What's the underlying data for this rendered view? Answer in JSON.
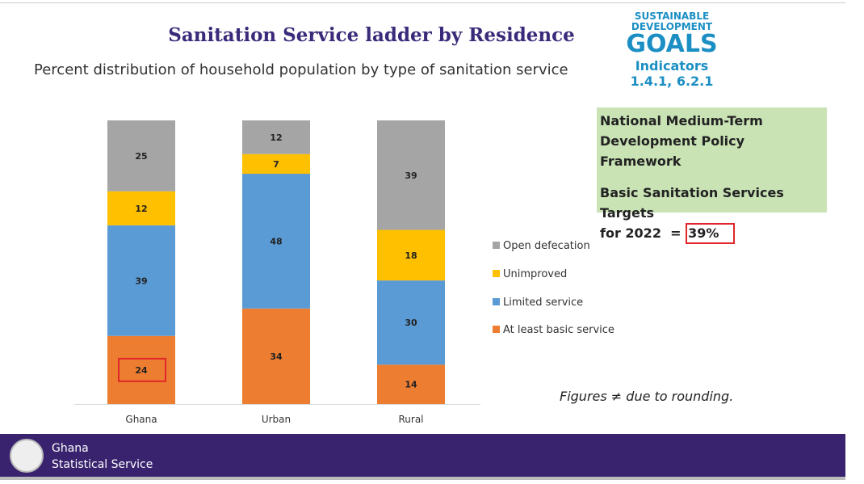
{
  "header": {
    "title": "Sanitation Service ladder by Residence",
    "subtitle": "Percent distribution of household population by type of sanitation service"
  },
  "sdg": {
    "line1": "SUSTAINABLE",
    "line2": "DEVELOPMENT",
    "line3": "GOALS",
    "indicators": "Indicators",
    "codes": "1.4.1, 6.2.1"
  },
  "policy_box": {
    "line1": "National Medium-Term",
    "line2": "Development Policy Framework",
    "line3": "Basic Sanitation Services Targets",
    "line4_prefix": "for 2022  = ",
    "target": "39%",
    "bg": "#c9e3b5",
    "highlight": "#e0262a"
  },
  "note": "Figures ≠ due to rounding.",
  "footer": {
    "line1": "Ghana",
    "line2": "Statistical Service",
    "bg": "#3a236e"
  },
  "chart_data": {
    "type": "bar",
    "stacked": true,
    "categories": [
      "Ghana",
      "Urban",
      "Rural"
    ],
    "series": [
      {
        "name": "At least basic service",
        "color": "#ed7d31",
        "values": [
          24,
          34,
          14
        ]
      },
      {
        "name": "Limited service",
        "color": "#5b9bd5",
        "values": [
          39,
          48,
          30
        ]
      },
      {
        "name": "Unimproved",
        "color": "#ffc000",
        "values": [
          12,
          7,
          18
        ]
      },
      {
        "name": "Open defecation",
        "color": "#a5a5a5",
        "values": [
          25,
          12,
          39
        ]
      }
    ],
    "highlighted": {
      "category": "Ghana",
      "series": "At least basic service",
      "color": "#e0262a"
    },
    "legend": "right"
  }
}
